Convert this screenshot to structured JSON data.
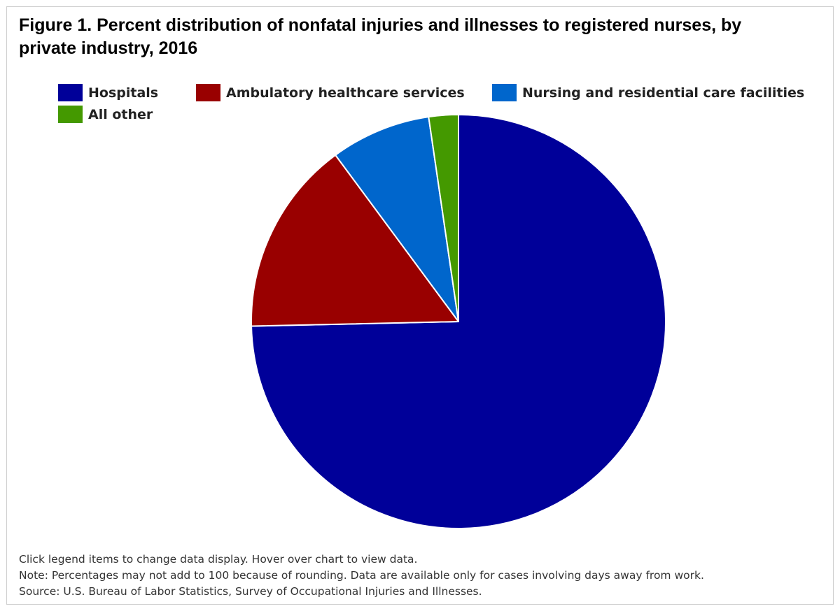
{
  "chart_data": {
    "type": "pie",
    "title": "Figure 1. Percent distribution of nonfatal injuries and illnesses to registered nurses, by private industry, 2016",
    "legend_position": "top",
    "series": [
      {
        "name": "Hospitals",
        "value": 74.5,
        "color": "#000099"
      },
      {
        "name": "Ambulatory healthcare services",
        "value": 15.2,
        "color": "#990000"
      },
      {
        "name": "Nursing and residential care facilities",
        "value": 7.8,
        "color": "#0066cc"
      },
      {
        "name": "All other",
        "value": 2.3,
        "color": "#449900"
      }
    ]
  },
  "notes": {
    "interaction": "Click legend items to change data display. Hover over chart to view data.",
    "note": "Note: Percentages may not add to 100 because of rounding. Data are available only for cases involving days away from work.",
    "source": "Source: U.S. Bureau of Labor Statistics, Survey of Occupational Injuries and Illnesses."
  }
}
